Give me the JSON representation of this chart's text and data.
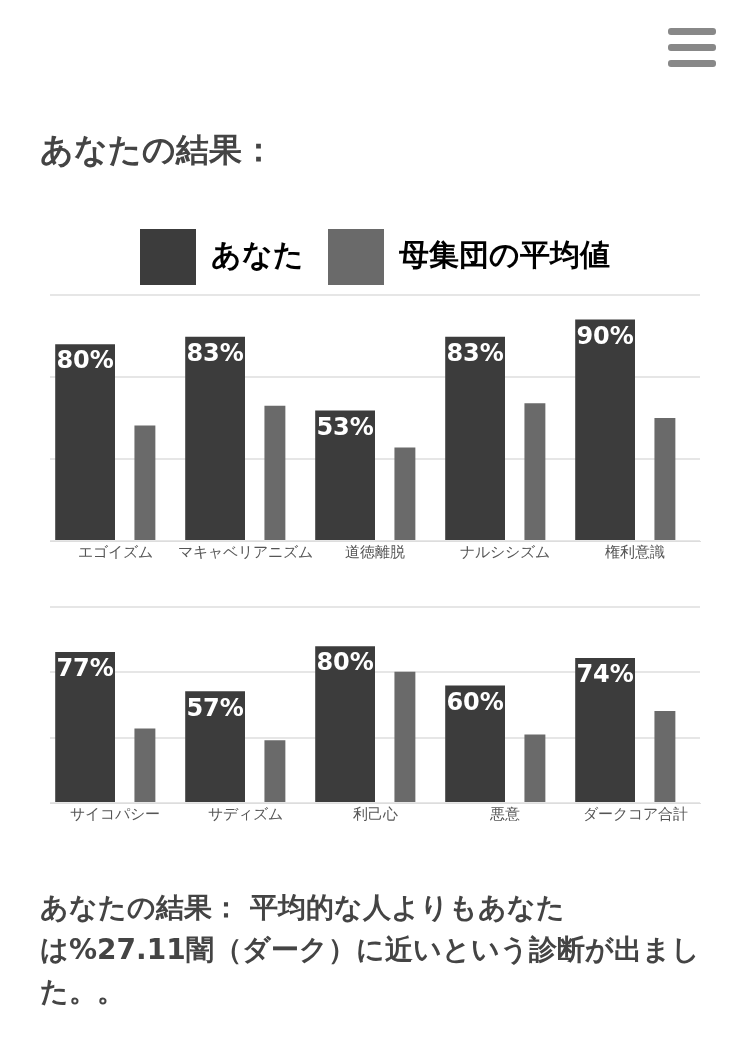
{
  "chart_data": [
    {
      "type": "bar",
      "title": "あなたの結果：",
      "legend": "top",
      "grid": "y",
      "tick_labels": "x",
      "categories": [
        "エゴイズム",
        "マキャベリアニズム",
        "道徳離脱",
        "ナルシシズム",
        "権利意識"
      ],
      "ylim": [
        0,
        100
      ],
      "yticks": [
        {
          "value": 0,
          "label": null
        },
        {
          "value": 33.3,
          "label": null
        },
        {
          "value": 66.7,
          "label": null
        },
        {
          "value": 100,
          "label": null
        }
      ],
      "series": [
        {
          "name": "あなた",
          "color": "#3c3c3c",
          "values": [
            80,
            83,
            53,
            83,
            90
          ],
          "value_labels": [
            "80%",
            "83%",
            "53%",
            "83%",
            "90%"
          ]
        },
        {
          "name": "母集団の平均値",
          "color": "#6a6a6a",
          "values": [
            47,
            55,
            38,
            56,
            50
          ]
        }
      ]
    },
    {
      "type": "bar",
      "grid": "y",
      "tick_labels": "x",
      "categories": [
        "サイコパシー",
        "サディズム",
        "利己心",
        "悪意",
        "ダークコア合計"
      ],
      "ylim": [
        0,
        100
      ],
      "yticks": [
        {
          "value": 0,
          "label": null
        },
        {
          "value": 33.3,
          "label": null
        },
        {
          "value": 66.7,
          "label": null
        },
        {
          "value": 100,
          "label": null
        }
      ],
      "annotations": [
        "あなたの結果： 平均的な人よりもあなたは%27.11闇（ダーク）に近いという診断が出ました。。"
      ],
      "series": [
        {
          "color": "#3c3c3c",
          "values": [
            77,
            57,
            80,
            60,
            74
          ],
          "value_labels": [
            "77%",
            "57%",
            "80%",
            "60%",
            "74%"
          ]
        },
        {
          "color": "#6a6a6a",
          "values": [
            38,
            32,
            67,
            35,
            47
          ]
        }
      ]
    }
  ]
}
